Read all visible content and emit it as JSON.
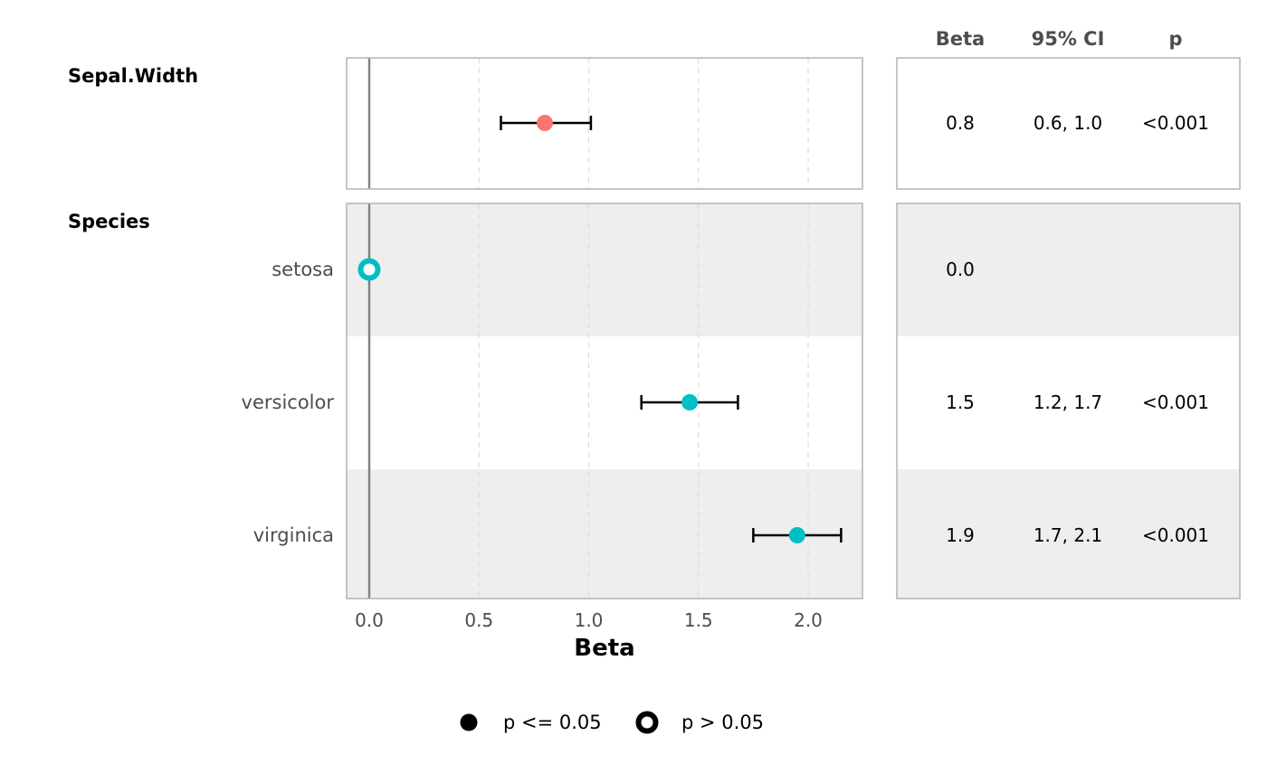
{
  "chart_data": {
    "type": "forest",
    "xlabel": "Beta",
    "xlim": [
      -0.1,
      2.25
    ],
    "xticks": [
      0.0,
      0.5,
      1.0,
      1.5,
      2.0
    ],
    "xtick_labels": [
      "0.0",
      "0.5",
      "1.0",
      "1.5",
      "2.0"
    ],
    "reference_line": 0,
    "grid": "vertical dashed",
    "groups": [
      {
        "label": "Sepal.Width",
        "color": "#F8766D",
        "rows": [
          {
            "label": "",
            "estimate": 0.8,
            "ci": [
              0.6,
              1.01
            ],
            "significant": true,
            "beta": "0.8",
            "ci_text": "0.6, 1.0",
            "p": "<0.001"
          }
        ]
      },
      {
        "label": "Species",
        "color": "#00BFC4",
        "rows": [
          {
            "label": "setosa",
            "estimate": 0.0,
            "ci": null,
            "significant": false,
            "beta": "0.0",
            "ci_text": "",
            "p": ""
          },
          {
            "label": "versicolor",
            "estimate": 1.46,
            "ci": [
              1.24,
              1.68
            ],
            "significant": true,
            "beta": "1.5",
            "ci_text": "1.2, 1.7",
            "p": "<0.001"
          },
          {
            "label": "virginica",
            "estimate": 1.95,
            "ci": [
              1.75,
              2.15
            ],
            "significant": true,
            "beta": "1.9",
            "ci_text": "1.7, 2.1",
            "p": "<0.001"
          }
        ]
      }
    ],
    "table_headers": [
      "Beta",
      "95% CI",
      "p"
    ],
    "legend": {
      "position": "bottom",
      "items": [
        {
          "label": "p <= 0.05",
          "marker": "filled"
        },
        {
          "label": "p > 0.05",
          "marker": "hollow"
        }
      ]
    },
    "colors": {
      "stripe": "#eeeeee",
      "panel_border": "#b3b3b3",
      "gridline": "#dddddd",
      "reference_line": "#808080",
      "whisker": "#000000"
    }
  }
}
